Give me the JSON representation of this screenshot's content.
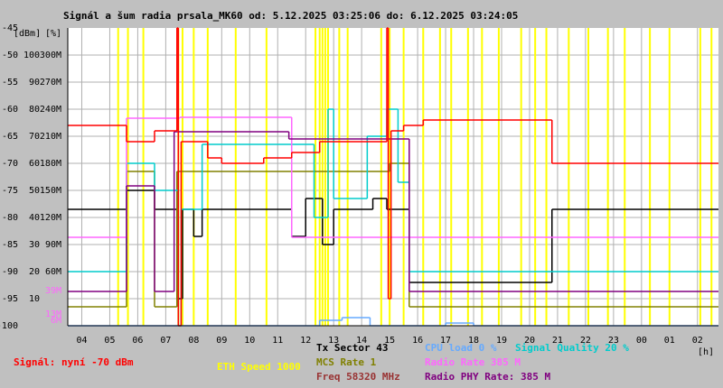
{
  "chart_data": {
    "type": "step",
    "title": "Signál a šum radia prsala_MK60 od: 5.12.2025 03:25:06 do: 6.12.2025 03:24:05",
    "y_label": "[dBm]",
    "y2_label": "[%]",
    "x_label": "[h]",
    "xlim": [
      3.5,
      26.75
    ],
    "xticks": [
      {
        "value": 4,
        "label": "04"
      },
      {
        "value": 5,
        "label": "05"
      },
      {
        "value": 6,
        "label": "06"
      },
      {
        "value": 7,
        "label": "07"
      },
      {
        "value": 8,
        "label": "08"
      },
      {
        "value": 9,
        "label": "09"
      },
      10,
      11,
      12,
      13,
      14,
      15,
      16,
      17,
      18,
      19,
      20,
      21,
      22,
      23,
      {
        "value": 24,
        "label": "00"
      },
      {
        "value": 25,
        "label": "01"
      },
      {
        "value": 26,
        "label": "02"
      }
    ],
    "ylim": [
      -100,
      -45
    ],
    "yticks": [
      -45,
      -50,
      -55,
      -60,
      -65,
      -70,
      -75,
      -80,
      -85,
      -90,
      -95,
      -100
    ],
    "y2lim": [
      0,
      110
    ],
    "y2ticks": [
      100,
      90,
      80,
      70,
      60,
      50,
      40,
      30,
      20,
      10
    ],
    "y3lim": [
      0,
      330
    ],
    "y3ticks": [
      {
        "value": 300,
        "label": "300M"
      },
      {
        "value": 270,
        "label": "270M"
      },
      {
        "value": 240,
        "label": "240M"
      },
      {
        "value": 210,
        "label": "210M"
      },
      {
        "value": 180,
        "label": "180M"
      },
      {
        "value": 150,
        "label": "150M"
      },
      {
        "value": 120,
        "label": "120M"
      },
      {
        "value": 90,
        "label": "90M"
      },
      {
        "value": 60,
        "label": "60M"
      }
    ],
    "rate_ticks": [
      {
        "value": 39,
        "label": "39M"
      },
      {
        "value": 13,
        "label": "13M"
      },
      {
        "value": 6,
        "label": "6M"
      }
    ],
    "rate_ticks_color": "#ff66ff",
    "grid": true,
    "series": [
      {
        "name": "ETH Speed 1000",
        "color": "#ffff00",
        "x": [
          5.3,
          5.65,
          6.2,
          7.45,
          7.6,
          8.0,
          8.5,
          9.5,
          10.6,
          12.35,
          12.5,
          12.6,
          12.7,
          12.8,
          13.2,
          13.5,
          14.7,
          15.0,
          15.5,
          16.2,
          16.8,
          17.2,
          17.8,
          18.3,
          18.9,
          19.7,
          20.2,
          20.6,
          21.4,
          22.1,
          22.8,
          23.4,
          24.3,
          25.0,
          26.1,
          26.5
        ]
      },
      {
        "name": "Tx Sector 43",
        "color": "#000000",
        "axis": "y2",
        "x": [
          3.5,
          5.6,
          6.6,
          7.4,
          7.6,
          8.0,
          8.3,
          11.5,
          12.0,
          12.6,
          13.0,
          14.4,
          14.9,
          15.7,
          20.8
        ],
        "values": [
          43,
          50,
          43,
          10,
          43,
          33,
          43,
          33,
          47,
          30,
          43,
          47,
          43,
          16,
          43
        ]
      },
      {
        "name": "MCS Rate 1",
        "color": "#808000",
        "axis": "y2",
        "x": [
          3.5,
          5.6,
          6.6,
          7.4,
          8.3,
          15.0,
          15.7
        ],
        "values": [
          7,
          57,
          7,
          57,
          57,
          60,
          7
        ]
      },
      {
        "name": "Freq 58320 MHz",
        "color": "#993333"
      },
      {
        "name": "CPU load 0 %",
        "color": "#66aaff",
        "axis": "y2",
        "x": [
          3.5,
          12.5,
          13.3,
          14.3,
          17.0,
          18.0,
          26.0
        ],
        "values": [
          0,
          2,
          3,
          0,
          1,
          0,
          0
        ]
      },
      {
        "name": "Signal Quality 20 %",
        "color": "#00cccc",
        "axis": "y2",
        "x": [
          3.5,
          5.6,
          6.6,
          7.45,
          7.55,
          8.3,
          12.3,
          12.8,
          13.0,
          14.2,
          14.9,
          15.3,
          15.7
        ],
        "values": [
          20,
          60,
          50,
          0,
          43,
          67,
          40,
          80,
          47,
          70,
          80,
          53,
          20
        ]
      },
      {
        "name": "Radio Rate 385 M",
        "color": "#ff66ff",
        "axis": "y3",
        "x": [
          3.5,
          5.6,
          7.5,
          11.5,
          15.8
        ],
        "values": [
          98,
          230,
          231,
          98,
          98
        ]
      },
      {
        "name": "Radio PHY Rate: 385 M",
        "color": "#800080",
        "axis": "y3",
        "x": [
          3.5,
          5.6,
          6.6,
          7.3,
          11.4,
          15.7
        ],
        "values": [
          38,
          155,
          38,
          215,
          207,
          38
        ]
      },
      {
        "name": "Signál: nyní -70 dBm",
        "color": "#ff0000",
        "x": [
          3.5,
          5.6,
          6.6,
          7.4,
          7.45,
          7.55,
          8.5,
          9.0,
          10.5,
          11.5,
          12.5,
          14.9,
          14.95,
          15.05,
          15.5,
          16.2,
          20.8
        ],
        "values": [
          -63,
          -66,
          -64,
          -45,
          -100,
          -66,
          -69,
          -70,
          -69,
          -68,
          -66,
          -45,
          -95,
          -64,
          -63,
          -62,
          -70
        ]
      }
    ]
  }
}
